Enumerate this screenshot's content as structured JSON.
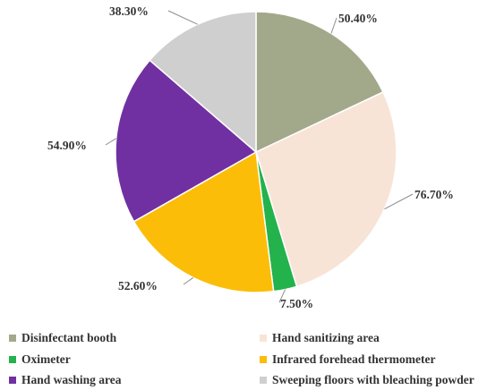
{
  "chart_data": {
    "type": "pie",
    "categories": [
      "Disinfectant booth",
      "Hand sanitizing area",
      "Oximeter",
      "Infrared forehead thermometer",
      "Hand washing area",
      "Sweeping floors with bleaching powder"
    ],
    "values": [
      50.4,
      76.7,
      7.5,
      52.6,
      54.9,
      38.3
    ],
    "labels": [
      "50.40%",
      "76.70%",
      "7.50%",
      "52.60%",
      "54.90%",
      "38.30%"
    ],
    "colors": [
      "#a2a88a",
      "#f8e4d7",
      "#23b24c",
      "#fbbd07",
      "#7130a1",
      "#cfcfcf"
    ],
    "legend_position": "bottom",
    "title": ""
  }
}
